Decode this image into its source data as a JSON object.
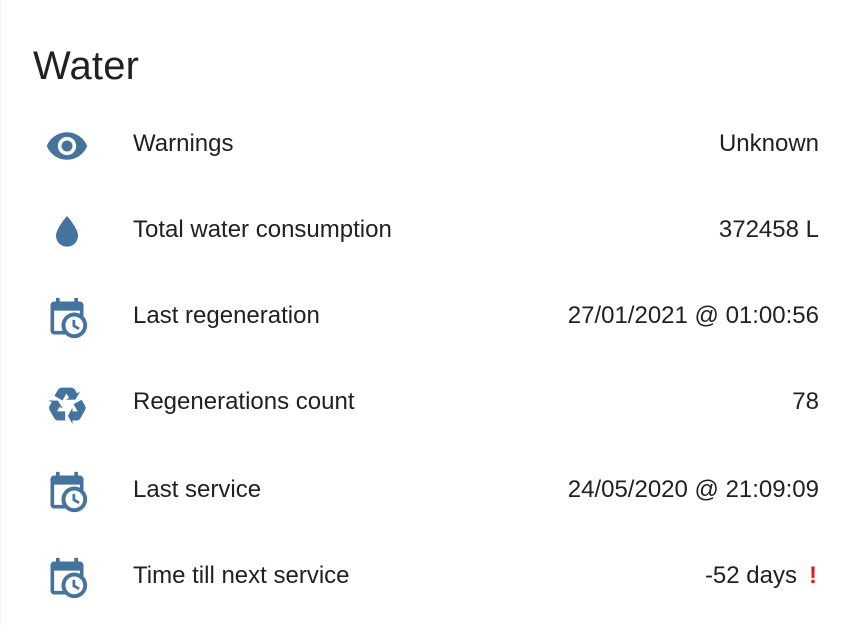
{
  "card": {
    "title": "Water"
  },
  "colors": {
    "icon": "#44739e",
    "text": "#212121",
    "alert": "#e02020"
  },
  "rows": [
    {
      "icon": "eye-icon",
      "label": "Warnings",
      "value": "Unknown"
    },
    {
      "icon": "water-drop-icon",
      "label": "Total water consumption",
      "value": "372458 L"
    },
    {
      "icon": "calendar-clock-icon",
      "label": "Last regeneration",
      "value": "27/01/2021 @ 01:00:56"
    },
    {
      "icon": "recycle-icon",
      "label": "Regenerations count",
      "value": "78"
    },
    {
      "icon": "calendar-clock-icon",
      "label": "Last service",
      "value": "24/05/2020 @ 21:09:09"
    },
    {
      "icon": "calendar-clock-icon",
      "label": "Time till next service",
      "value": "-52 days",
      "alert": "!"
    }
  ]
}
